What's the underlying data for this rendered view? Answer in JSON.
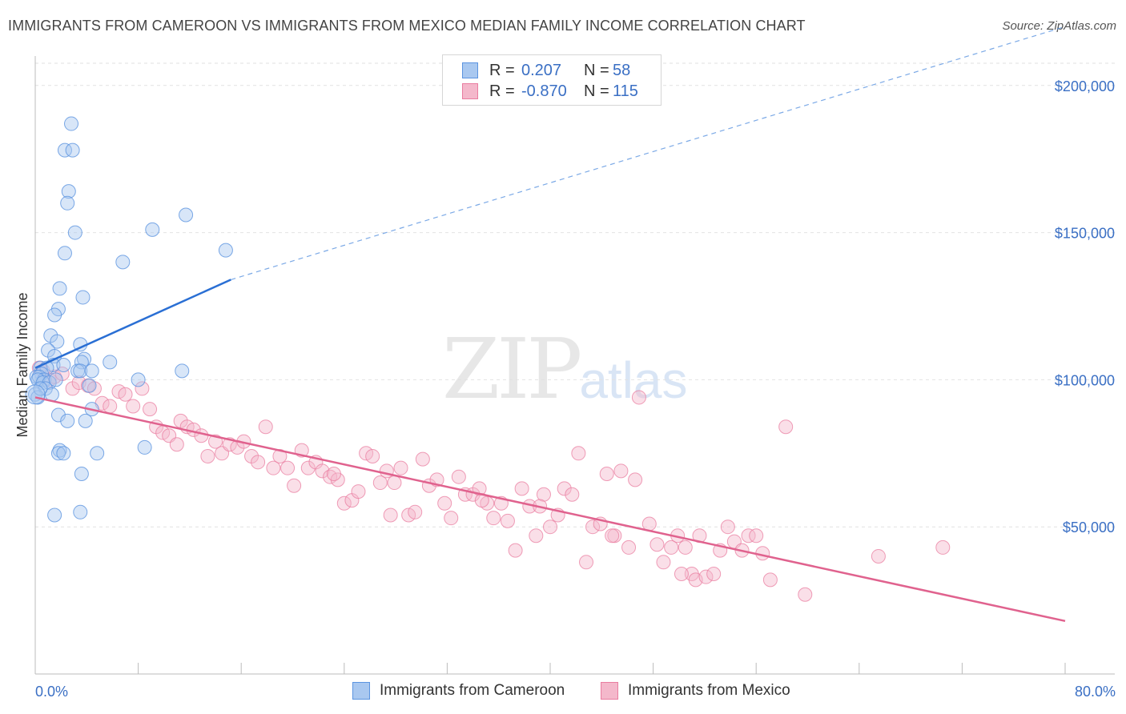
{
  "title": "IMMIGRANTS FROM CAMEROON VS IMMIGRANTS FROM MEXICO MEDIAN FAMILY INCOME CORRELATION CHART",
  "source": "Source: ZipAtlas.com",
  "watermark": {
    "zip": "ZIP",
    "atlas": "atlas"
  },
  "colors": {
    "blue": "#5b94e0",
    "blue_fill": "#a9c8f0",
    "blue_line": "#2a6fd4",
    "pink": "#e97da0",
    "pink_fill": "#f4b8cb",
    "pink_line": "#e0628e",
    "axis_text": "#3a6fc4"
  },
  "legend_top": {
    "cameroon": {
      "r_label": "R =",
      "r_value": "0.207",
      "n_label": "N =",
      "n_value": "58"
    },
    "mexico": {
      "r_label": "R =",
      "r_value": "-0.870",
      "n_label": "N =",
      "n_value": "115"
    }
  },
  "legend_bottom": {
    "cameroon": "Immigrants from Cameroon",
    "mexico": "Immigrants from Mexico"
  },
  "chart_data": {
    "type": "scatter",
    "xlabel": "",
    "ylabel": "Median Family Income",
    "xlim": [
      0,
      80
    ],
    "ylim": [
      0,
      210000
    ],
    "x_tick_labels": [
      "0.0%",
      "80.0%"
    ],
    "y_ticks": [
      50000,
      100000,
      150000,
      200000
    ],
    "y_tick_labels": [
      "$50,000",
      "$100,000",
      "$150,000",
      "$200,000"
    ],
    "grid": true,
    "series": [
      {
        "name": "Immigrants from Cameroon",
        "trend": {
          "x": [
            0,
            15.2
          ],
          "y": [
            104000,
            134000
          ],
          "dashed_to": [
            80,
            220000
          ]
        },
        "points": [
          [
            2.8,
            187000
          ],
          [
            2.3,
            178000
          ],
          [
            2.9,
            178000
          ],
          [
            2.6,
            164000
          ],
          [
            2.5,
            160000
          ],
          [
            11.7,
            156000
          ],
          [
            9.1,
            151000
          ],
          [
            3.1,
            150000
          ],
          [
            14.8,
            144000
          ],
          [
            2.3,
            143000
          ],
          [
            6.8,
            140000
          ],
          [
            3.7,
            128000
          ],
          [
            1.9,
            131000
          ],
          [
            1.8,
            124000
          ],
          [
            1.5,
            122000
          ],
          [
            1.2,
            115000
          ],
          [
            1.7,
            113000
          ],
          [
            3.5,
            112000
          ],
          [
            1.0,
            110000
          ],
          [
            1.5,
            108000
          ],
          [
            3.8,
            107000
          ],
          [
            3.6,
            106000
          ],
          [
            5.8,
            106000
          ],
          [
            1.4,
            105000
          ],
          [
            2.2,
            105000
          ],
          [
            0.4,
            104000
          ],
          [
            0.9,
            104000
          ],
          [
            3.3,
            103000
          ],
          [
            3.5,
            103000
          ],
          [
            4.4,
            103000
          ],
          [
            11.4,
            103000
          ],
          [
            0.5,
            102000
          ],
          [
            0.1,
            101000
          ],
          [
            0.3,
            101000
          ],
          [
            0.7,
            100000
          ],
          [
            0.2,
            100000
          ],
          [
            8.0,
            100000
          ],
          [
            0.6,
            99000
          ],
          [
            1.1,
            99000
          ],
          [
            4.2,
            98000
          ],
          [
            0.8,
            97000
          ],
          [
            0.0,
            95000
          ],
          [
            1.3,
            95000
          ],
          [
            0.2,
            94000
          ],
          [
            4.4,
            90000
          ],
          [
            1.8,
            88000
          ],
          [
            2.5,
            86000
          ],
          [
            3.9,
            86000
          ],
          [
            8.5,
            77000
          ],
          [
            1.9,
            76000
          ],
          [
            1.8,
            75000
          ],
          [
            2.2,
            75000
          ],
          [
            4.8,
            75000
          ],
          [
            3.6,
            68000
          ],
          [
            3.5,
            55000
          ],
          [
            1.5,
            54000
          ],
          [
            0.4,
            97000
          ],
          [
            1.6,
            100000
          ]
        ]
      },
      {
        "name": "Immigrants from Mexico",
        "trend": {
          "x": [
            0,
            80
          ],
          "y": [
            94000,
            18000
          ]
        },
        "points": [
          [
            0.3,
            104000
          ],
          [
            0.6,
            103000
          ],
          [
            1.1,
            100000
          ],
          [
            1.5,
            101000
          ],
          [
            2.1,
            102000
          ],
          [
            2.9,
            97000
          ],
          [
            3.4,
            99000
          ],
          [
            4.1,
            98000
          ],
          [
            4.6,
            97000
          ],
          [
            5.2,
            92000
          ],
          [
            5.8,
            91000
          ],
          [
            6.5,
            96000
          ],
          [
            7.0,
            95000
          ],
          [
            7.6,
            91000
          ],
          [
            8.3,
            97000
          ],
          [
            8.9,
            90000
          ],
          [
            9.4,
            84000
          ],
          [
            9.9,
            82000
          ],
          [
            10.4,
            81000
          ],
          [
            11.0,
            78000
          ],
          [
            11.3,
            86000
          ],
          [
            11.8,
            84000
          ],
          [
            12.3,
            83000
          ],
          [
            12.9,
            81000
          ],
          [
            13.4,
            74000
          ],
          [
            14.0,
            79000
          ],
          [
            14.5,
            75000
          ],
          [
            15.1,
            78000
          ],
          [
            15.7,
            77000
          ],
          [
            16.2,
            79000
          ],
          [
            16.8,
            74000
          ],
          [
            17.3,
            72000
          ],
          [
            17.9,
            84000
          ],
          [
            18.5,
            70000
          ],
          [
            19.0,
            74000
          ],
          [
            19.6,
            70000
          ],
          [
            20.1,
            64000
          ],
          [
            20.7,
            76000
          ],
          [
            21.2,
            70000
          ],
          [
            21.8,
            72000
          ],
          [
            22.3,
            69000
          ],
          [
            22.9,
            67000
          ],
          [
            23.5,
            66000
          ],
          [
            24.0,
            58000
          ],
          [
            24.6,
            59000
          ],
          [
            25.1,
            62000
          ],
          [
            25.7,
            75000
          ],
          [
            26.2,
            74000
          ],
          [
            26.8,
            65000
          ],
          [
            27.3,
            69000
          ],
          [
            27.9,
            65000
          ],
          [
            28.4,
            70000
          ],
          [
            29.0,
            54000
          ],
          [
            29.5,
            55000
          ],
          [
            30.1,
            73000
          ],
          [
            30.6,
            64000
          ],
          [
            31.2,
            66000
          ],
          [
            31.8,
            58000
          ],
          [
            32.3,
            53000
          ],
          [
            32.9,
            67000
          ],
          [
            33.4,
            61000
          ],
          [
            34.0,
            61000
          ],
          [
            34.5,
            63000
          ],
          [
            35.1,
            58000
          ],
          [
            35.6,
            53000
          ],
          [
            36.2,
            58000
          ],
          [
            36.7,
            52000
          ],
          [
            37.3,
            42000
          ],
          [
            37.8,
            63000
          ],
          [
            38.4,
            57000
          ],
          [
            38.9,
            47000
          ],
          [
            39.5,
            61000
          ],
          [
            40.0,
            50000
          ],
          [
            40.6,
            54000
          ],
          [
            41.1,
            63000
          ],
          [
            41.7,
            61000
          ],
          [
            42.2,
            75000
          ],
          [
            42.8,
            38000
          ],
          [
            43.3,
            50000
          ],
          [
            43.9,
            51000
          ],
          [
            44.4,
            68000
          ],
          [
            45.0,
            47000
          ],
          [
            45.5,
            69000
          ],
          [
            46.1,
            43000
          ],
          [
            46.6,
            66000
          ],
          [
            46.9,
            94000
          ],
          [
            47.7,
            51000
          ],
          [
            48.3,
            44000
          ],
          [
            48.8,
            38000
          ],
          [
            49.4,
            43000
          ],
          [
            49.9,
            47000
          ],
          [
            50.5,
            43000
          ],
          [
            51.0,
            34000
          ],
          [
            51.3,
            32000
          ],
          [
            51.6,
            47000
          ],
          [
            52.1,
            33000
          ],
          [
            52.7,
            34000
          ],
          [
            53.2,
            42000
          ],
          [
            53.8,
            50000
          ],
          [
            54.3,
            45000
          ],
          [
            54.9,
            42000
          ],
          [
            55.4,
            47000
          ],
          [
            56.0,
            47000
          ],
          [
            56.5,
            41000
          ],
          [
            57.1,
            32000
          ],
          [
            58.3,
            84000
          ],
          [
            59.8,
            27000
          ],
          [
            65.5,
            40000
          ],
          [
            70.5,
            43000
          ],
          [
            50.2,
            34000
          ],
          [
            44.8,
            47000
          ],
          [
            39.2,
            57000
          ],
          [
            34.7,
            59000
          ],
          [
            27.6,
            54000
          ],
          [
            23.2,
            68000
          ]
        ]
      }
    ]
  }
}
